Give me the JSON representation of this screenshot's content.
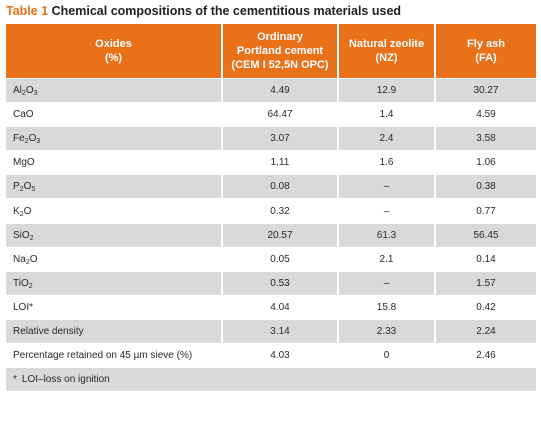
{
  "caption": {
    "label": "Table 1",
    "text": "Chemical compositions of the cementitious materials used"
  },
  "headers": {
    "col1": [
      "Oxides",
      "(%)"
    ],
    "col2": [
      "Ordinary",
      "Portland cement",
      "(CEM I 52,5N OPC)"
    ],
    "col3": [
      "Natural zeolite",
      "(NZ)"
    ],
    "col4": [
      "Fly ash",
      "(FA)"
    ]
  },
  "rows": [
    {
      "parts": [
        "Al",
        "2",
        "O",
        "3",
        ""
      ],
      "opc": "4.49",
      "nz": "12.9",
      "fa": "30.27"
    },
    {
      "parts": [
        "CaO",
        "",
        "",
        "",
        ""
      ],
      "opc": "64.47",
      "nz": "1.4",
      "fa": "4.59"
    },
    {
      "parts": [
        "Fe",
        "2",
        "O",
        "3",
        ""
      ],
      "opc": "3.07",
      "nz": "2.4",
      "fa": "3.58"
    },
    {
      "parts": [
        "MgO",
        "",
        "",
        "",
        ""
      ],
      "opc": "1.11",
      "nz": "1.6",
      "fa": "1.06"
    },
    {
      "parts": [
        "P",
        "2",
        "O",
        "5",
        ""
      ],
      "opc": "0.08",
      "nz": "–",
      "fa": "0.38"
    },
    {
      "parts": [
        "K",
        "2",
        "O",
        "",
        ""
      ],
      "opc": "0.32",
      "nz": "–",
      "fa": "0.77"
    },
    {
      "parts": [
        "SiO",
        "2",
        "",
        "",
        ""
      ],
      "opc": "20.57",
      "nz": "61.3",
      "fa": "56.45"
    },
    {
      "parts": [
        "Na",
        "2",
        "O",
        "",
        ""
      ],
      "opc": "0.05",
      "nz": "2.1",
      "fa": "0.14"
    },
    {
      "parts": [
        "TiO",
        "2",
        "",
        "",
        ""
      ],
      "opc": "0.53",
      "nz": "–",
      "fa": "1.57"
    },
    {
      "parts": [
        "LOI*",
        "",
        "",
        "",
        ""
      ],
      "opc": "4.04",
      "nz": "15.8",
      "fa": "0.42"
    },
    {
      "parts": [
        "Relative density",
        "",
        "",
        "",
        ""
      ],
      "opc": "3.14",
      "nz": "2.33",
      "fa": "2.24"
    },
    {
      "parts": [
        "Percentage retained on 45 µm sieve (%)",
        "",
        "",
        "",
        ""
      ],
      "opc": "4.03",
      "nz": "0",
      "fa": "2.46"
    }
  ],
  "footnote": {
    "marker": "*",
    "text": "LOI–loss on ignition"
  }
}
